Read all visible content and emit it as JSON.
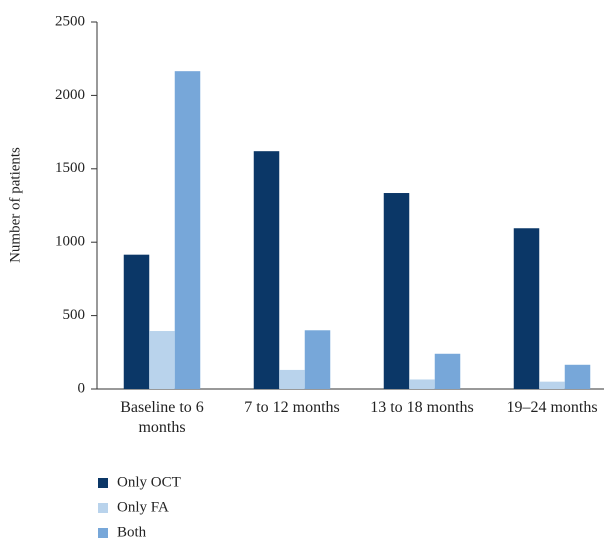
{
  "chart_data": {
    "type": "bar",
    "y_label": "Number of patients",
    "categories": [
      "Baseline to 6 months",
      "7 to 12 months",
      "13 to 18 months",
      "19–24 months"
    ],
    "series": [
      {
        "name": "Only OCT",
        "color": "#0b3767",
        "values": [
          915,
          1620,
          1335,
          1095
        ]
      },
      {
        "name": "Only FA",
        "color": "#b9d3ec",
        "values": [
          395,
          130,
          65,
          50
        ]
      },
      {
        "name": "Both",
        "color": "#77a7d9",
        "values": [
          2165,
          400,
          240,
          165
        ]
      }
    ],
    "ylim": [
      0,
      2500
    ],
    "yticks": [
      0,
      500,
      1000,
      1500,
      2000,
      2500
    ],
    "grid": false
  }
}
